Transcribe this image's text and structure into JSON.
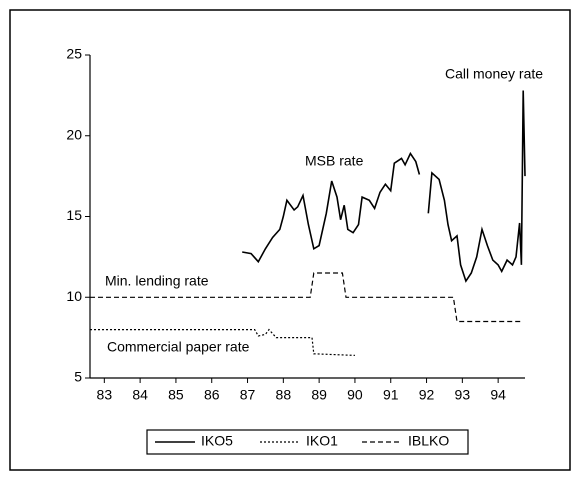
{
  "chart_data": {
    "type": "line",
    "xlim": [
      82.6,
      94.75
    ],
    "xticks": [
      83,
      84,
      85,
      86,
      87,
      88,
      89,
      90,
      91,
      92,
      93,
      94
    ],
    "ylim": [
      5,
      25
    ],
    "yticks": [
      5,
      10,
      15,
      20,
      25
    ],
    "annotations": [
      "Call money rate",
      "MSB rate",
      "Min. lending rate",
      "Commercial paper rate"
    ],
    "series": [
      {
        "name": "IKO5",
        "color": "#000000",
        "dash": "solid",
        "x": [
          86.85,
          87.1,
          87.3,
          87.5,
          87.7,
          87.9,
          88.0,
          88.1,
          88.3,
          88.4,
          88.55,
          88.7,
          88.85,
          89.0,
          89.2,
          89.35,
          89.5,
          89.6,
          89.7,
          89.8,
          89.95,
          90.1,
          90.2,
          90.4,
          90.55,
          90.7,
          90.85,
          91.0,
          91.1,
          91.3,
          91.4,
          91.55,
          91.7,
          91.8,
          91.9,
          92.05,
          92.15,
          92.35,
          92.5,
          92.6,
          92.7,
          92.85,
          92.95,
          93.1,
          93.25,
          93.4,
          93.55,
          93.7,
          93.85,
          94.0,
          94.1,
          94.25,
          94.4,
          94.5,
          94.6,
          94.65,
          94.7,
          94.75
        ],
        "values": [
          12.8,
          12.7,
          12.2,
          13.0,
          13.7,
          14.2,
          15.0,
          16.0,
          15.4,
          15.6,
          16.3,
          14.5,
          13.0,
          13.2,
          15.2,
          17.2,
          16.2,
          14.8,
          15.7,
          14.2,
          14.0,
          14.5,
          16.2,
          16.0,
          15.5,
          16.5,
          17.0,
          16.6,
          18.3,
          18.6,
          18.2,
          18.9,
          18.4,
          17.6,
          null,
          15.2,
          17.7,
          17.3,
          16.0,
          14.5,
          13.5,
          13.8,
          12.0,
          11.0,
          11.5,
          12.5,
          14.2,
          13.2,
          12.3,
          12.0,
          11.6,
          12.3,
          12.0,
          12.5,
          14.6,
          12.0,
          22.8,
          17.5
        ]
      },
      {
        "name": "IKO1",
        "color": "#000000",
        "dash": "dotted",
        "x": [
          82.6,
          87.2,
          87.3,
          87.5,
          87.6,
          87.8,
          88.8,
          88.85,
          90.0
        ],
        "values": [
          8.0,
          8.0,
          7.6,
          7.7,
          8.0,
          7.5,
          7.5,
          6.5,
          6.4
        ]
      },
      {
        "name": "IBLKO",
        "color": "#000000",
        "dash": "dashed",
        "x": [
          82.6,
          88.75,
          88.85,
          89.65,
          89.75,
          92.75,
          92.85,
          94.7
        ],
        "values": [
          10,
          10,
          11.5,
          11.5,
          10,
          10,
          8.5,
          8.5
        ]
      }
    ]
  }
}
